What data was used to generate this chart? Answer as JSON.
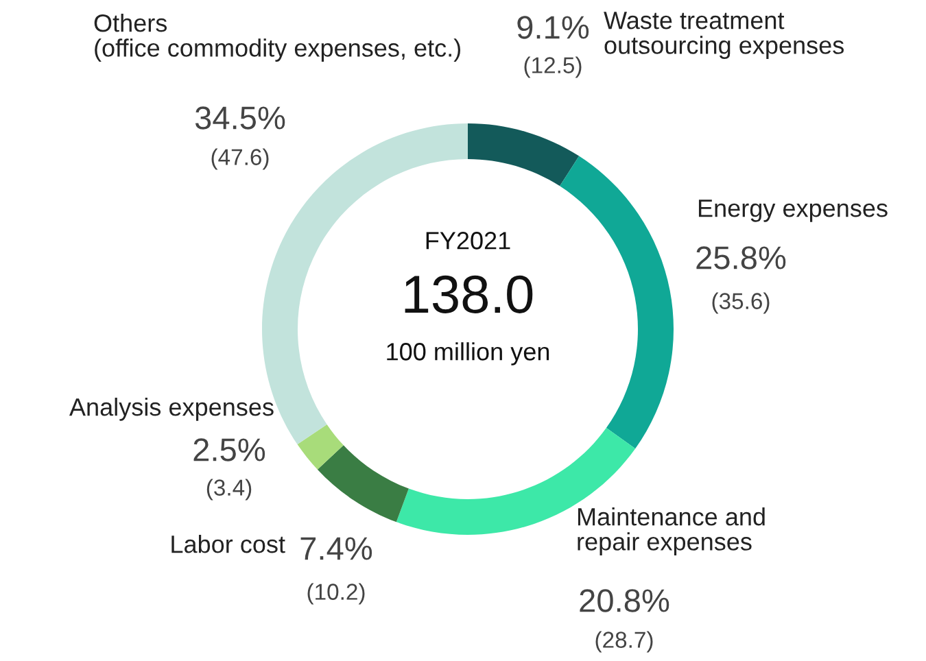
{
  "chart_data": {
    "type": "donut",
    "title": "FY2021",
    "categories": [
      "Waste treatment\noutsourcing expenses",
      "Energy expenses",
      "Maintenance and\nrepair expenses",
      "Labor cost",
      "Analysis expenses",
      "Others\n(office commodity expenses, etc.)"
    ],
    "values": [
      9.1,
      25.8,
      20.8,
      7.4,
      2.5,
      34.5
    ],
    "value_labels": [
      "9.1%",
      "25.8%",
      "20.8%",
      "7.4%",
      "2.5%",
      "34.5%"
    ],
    "data_labels": true,
    "colors": [
      "#135a5a",
      "#10a896",
      "#3de8a8",
      "#3a7d44",
      "#a8dc7a",
      "#c2e3dc"
    ],
    "annotations": [
      "138.0",
      "100 million yen",
      "(12.5)",
      "(35.6)",
      "(28.7)",
      "(10.2)",
      "(3.4)",
      "(47.6)"
    ]
  }
}
